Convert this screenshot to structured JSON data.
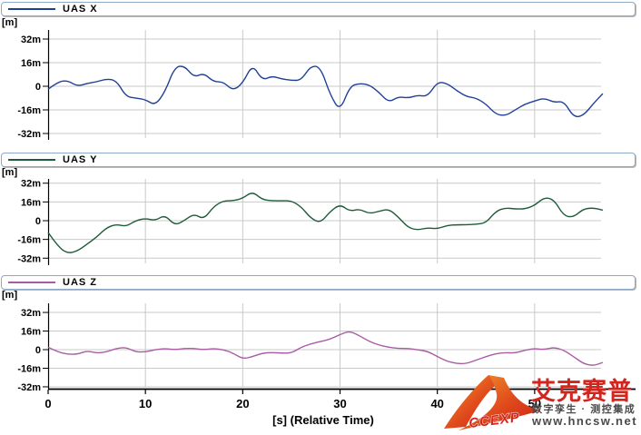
{
  "x_axis": {
    "label": "[s] (Relative Time)",
    "ticks": [
      0,
      10,
      20,
      30,
      40,
      50
    ],
    "unit": "s",
    "range": [
      0,
      60
    ]
  },
  "y_axis": {
    "tick_labels": [
      "32m",
      "16m",
      "0",
      "-16m",
      "-32m"
    ],
    "tick_values": [
      32,
      16,
      0,
      -16,
      -32
    ],
    "unit_label": "[m]"
  },
  "colors": {
    "grid": "#c9c9c9",
    "axis": "#000000",
    "legend_border": "#8ea8c8",
    "uas_x": "#1f4096",
    "uas_y": "#1d5c38",
    "uas_z": "#a95ca3"
  },
  "chart_data": [
    {
      "type": "line",
      "title": "UAS X",
      "ylabel": "[m]",
      "color": "#1f4096",
      "ylim": [
        -40,
        40
      ],
      "x_start": 0,
      "x_step": 1,
      "values": [
        -2,
        3,
        4,
        0,
        2,
        3,
        5,
        4,
        -7,
        -8,
        -9,
        -13,
        -4,
        13,
        14,
        6,
        9,
        3,
        3,
        -3,
        2,
        15,
        4,
        7,
        5,
        4,
        4,
        14,
        13,
        -6,
        -17,
        0,
        2,
        1,
        -4,
        -11,
        -7,
        -8,
        -6,
        -7,
        3,
        2,
        -3,
        -7,
        -8,
        -12,
        -19,
        -20,
        -16,
        -12,
        -10,
        -8,
        -11,
        -10,
        -21,
        -20,
        -12,
        -5
      ]
    },
    {
      "type": "line",
      "title": "UAS Y",
      "ylabel": "[m]",
      "color": "#1d5c38",
      "ylim": [
        -40,
        40
      ],
      "x_start": 0,
      "x_step": 1,
      "values": [
        -10,
        -22,
        -28,
        -26,
        -20,
        -14,
        -6,
        -3,
        -5,
        0,
        2,
        0,
        5,
        -4,
        0,
        6,
        1,
        12,
        17,
        17,
        19,
        25,
        18,
        17,
        17,
        17,
        12,
        2,
        -2,
        8,
        14,
        8,
        10,
        6,
        8,
        10,
        3,
        -6,
        -8,
        -6,
        -7,
        -4,
        -3.5,
        -3.5,
        -3,
        -2,
        8,
        11,
        10,
        10,
        13,
        20,
        18,
        4,
        3,
        10,
        11,
        9
      ]
    },
    {
      "type": "line",
      "title": "UAS Z",
      "ylabel": "[m]",
      "color": "#a95ca3",
      "ylim": [
        -40,
        40
      ],
      "x_start": 0,
      "x_step": 1,
      "values": [
        2,
        -2,
        -4,
        -4,
        -1,
        -3,
        -2,
        1,
        2,
        -2,
        -2,
        0,
        1,
        0,
        1,
        1,
        0,
        1,
        0,
        -3,
        -8,
        -6,
        -3,
        -2.5,
        -3,
        -3,
        2,
        5,
        7,
        9,
        13,
        16,
        12,
        7,
        4,
        2,
        1,
        1,
        0,
        -1.5,
        -6,
        -10,
        -12,
        -12,
        -9,
        -6,
        -3.5,
        -2.5,
        -3,
        -0.5,
        1,
        0,
        2,
        -0.5,
        -6,
        -12,
        -14,
        -11
      ]
    }
  ],
  "watermark": {
    "logo_text": "CCEXP",
    "brand": "艾克赛普",
    "tagline": "数字孪生 · 测控集成",
    "url": "www.hncsw.net"
  }
}
